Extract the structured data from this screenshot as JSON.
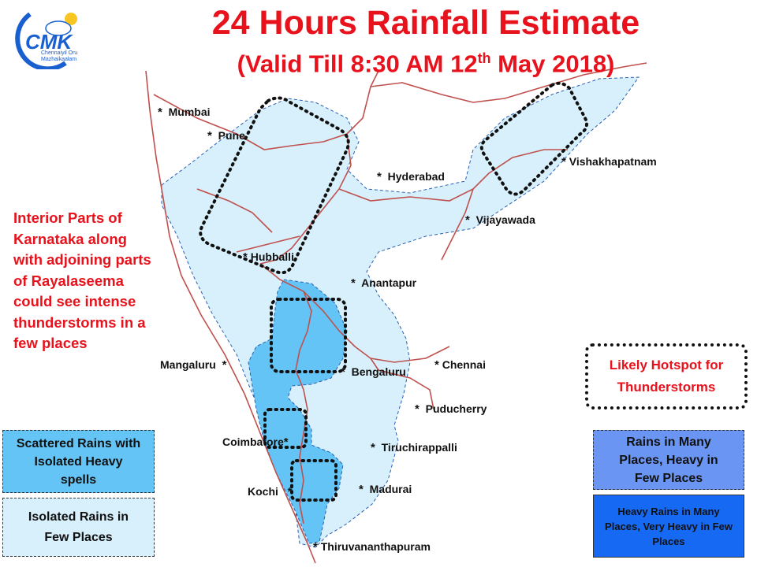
{
  "header": {
    "title": "24 Hours Rainfall Estimate",
    "subtitle_main": "(Valid Till 8:30 AM 12",
    "subtitle_sup": "th",
    "subtitle_end": " May 2018)"
  },
  "logo": {
    "text": "CMK",
    "tagline_1": "Chennaiyil Oru",
    "tagline_2": "Mazhaikaalam",
    "color": "#1a5fd0"
  },
  "note": "Interior Parts of Karnataka along with adjoining parts of Rayalaseema could see intense thunderstorms in a few places",
  "cities": [
    {
      "name": "Mumbai",
      "star": "*"
    },
    {
      "name": "Pune",
      "star": "*"
    },
    {
      "name": "Hyderabad",
      "star": "*"
    },
    {
      "name": "Vishakhapatnam",
      "star": "*"
    },
    {
      "name": "Vijayawada",
      "star": "*"
    },
    {
      "name": "Hubballi",
      "star": "*"
    },
    {
      "name": "Anantapur",
      "star": "*"
    },
    {
      "name": "Mangaluru",
      "star": "*"
    },
    {
      "name": "Bengaluru",
      "star": "*"
    },
    {
      "name": "Chennai",
      "star": "*"
    },
    {
      "name": "Puducherry",
      "star": "*"
    },
    {
      "name": "Coimbatore",
      "star": "*"
    },
    {
      "name": "Tiruchirappalli",
      "star": "*"
    },
    {
      "name": "Kochi",
      "star": "*"
    },
    {
      "name": "Madurai",
      "star": "*"
    },
    {
      "name": "Thiruvananthapuram",
      "star": "*"
    }
  ],
  "legend": {
    "scattered": "Scattered Rains with Isolated Heavy spells",
    "isolated": "Isolated Rains in Few  Places",
    "hotspot": "Likely Hotspot for Thunderstorms",
    "many": "Rains in Many Places, Heavy in Few Places",
    "heavy": "Heavy Rains in Many Places, Very Heavy in Few Places"
  },
  "colors": {
    "light_blue": "#d7f0fb",
    "medium_blue": "#63c4f5",
    "many_blue": "#6a95f3",
    "heavy_blue": "#1669f2",
    "border_red": "#c0504d",
    "title_red": "#e8121c"
  }
}
